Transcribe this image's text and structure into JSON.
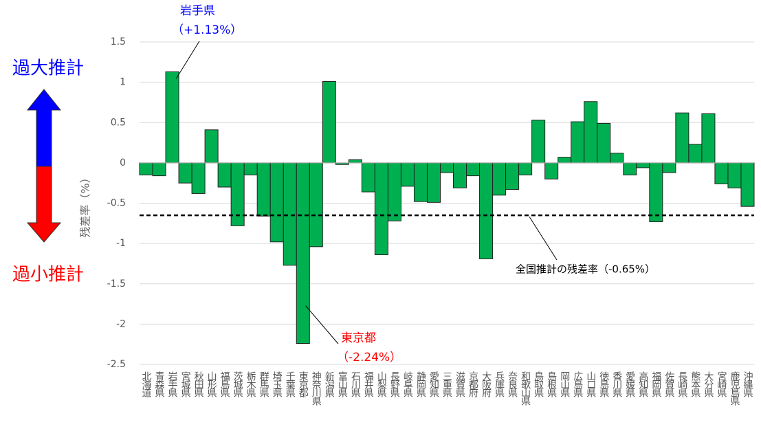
{
  "chart_data": {
    "type": "bar",
    "y_label": "残差率（%）",
    "side_labels": {
      "over": "過大推計",
      "under": "過小推計"
    },
    "categories": [
      "北海道",
      "青森県",
      "岩手県",
      "宮城県",
      "秋田県",
      "山形県",
      "福島県",
      "茨城県",
      "栃木県",
      "群馬県",
      "埼玉県",
      "千葉県",
      "東京都",
      "神奈川県",
      "新潟県",
      "富山県",
      "石川県",
      "福井県",
      "山梨県",
      "長野県",
      "岐阜県",
      "静岡県",
      "愛知県",
      "三重県",
      "滋賀県",
      "京都府",
      "大阪府",
      "兵庫県",
      "奈良県",
      "和歌山県",
      "鳥取県",
      "島根県",
      "岡山県",
      "広島県",
      "山口県",
      "徳島県",
      "香川県",
      "愛媛県",
      "高知県",
      "福岡県",
      "佐賀県",
      "長崎県",
      "熊本県",
      "大分県",
      "宮崎県",
      "鹿児島県",
      "沖縄県"
    ],
    "values": [
      -0.15,
      -0.16,
      1.13,
      -0.25,
      -0.38,
      0.41,
      -0.3,
      -0.78,
      -0.15,
      -0.66,
      -0.98,
      -1.27,
      -2.24,
      -1.04,
      1.01,
      -0.02,
      0.04,
      -0.36,
      -1.14,
      -0.72,
      -0.29,
      -0.48,
      -0.49,
      -0.12,
      -0.31,
      -0.16,
      -1.19,
      -0.4,
      -0.33,
      -0.15,
      0.53,
      -0.2,
      0.07,
      0.51,
      0.76,
      0.49,
      0.12,
      -0.15,
      -0.06,
      -0.73,
      -0.12,
      0.62,
      0.23,
      0.61,
      -0.26,
      -0.31,
      -0.54
    ],
    "color": "#00b050",
    "ylim": [
      -2.5,
      1.5
    ],
    "yticks": [
      1.5,
      1,
      0.5,
      0,
      -0.5,
      -1,
      -1.5,
      -2,
      -2.5
    ],
    "grid": true,
    "reference_line": {
      "value": -0.65,
      "label": "全国推計の残差率（-0.65%）"
    },
    "annotations": [
      {
        "name": "岩手県",
        "value_label": "（+1.13%）"
      },
      {
        "name": "東京都",
        "value_label": "（-2.24%）"
      }
    ]
  }
}
